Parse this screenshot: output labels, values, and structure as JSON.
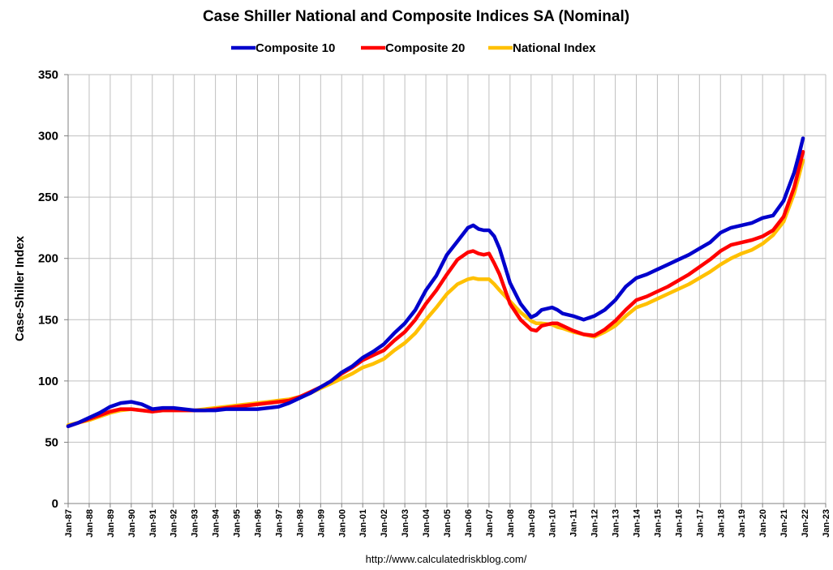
{
  "chart_data": {
    "type": "line",
    "title": "Case Shiller National and Composite Indices SA (Nominal)",
    "ylabel": "Case-Shiller Index",
    "xlabel": "",
    "source": "http://www.calculatedriskblog.com/",
    "ylim": [
      0,
      350
    ],
    "yticks": [
      "0",
      "50",
      "100",
      "150",
      "200",
      "250",
      "300",
      "350"
    ],
    "xlim": [
      1987.0,
      2023.0
    ],
    "xticks": [
      "Jan-87",
      "Jan-88",
      "Jan-89",
      "Jan-90",
      "Jan-91",
      "Jan-92",
      "Jan-93",
      "Jan-94",
      "Jan-95",
      "Jan-96",
      "Jan-97",
      "Jan-98",
      "Jan-99",
      "Jan-00",
      "Jan-01",
      "Jan-02",
      "Jan-03",
      "Jan-04",
      "Jan-05",
      "Jan-06",
      "Jan-07",
      "Jan-08",
      "Jan-09",
      "Jan-10",
      "Jan-11",
      "Jan-12",
      "Jan-13",
      "Jan-14",
      "Jan-15",
      "Jan-16",
      "Jan-17",
      "Jan-18",
      "Jan-19",
      "Jan-20",
      "Jan-21",
      "Jan-22",
      "Jan-23"
    ],
    "grid": true,
    "legend_position": "top",
    "series": [
      {
        "name": "Composite 10",
        "color": "#0000cc",
        "x": [
          1987.0,
          1987.5,
          1988.0,
          1988.5,
          1989.0,
          1989.5,
          1990.0,
          1990.5,
          1991.0,
          1991.5,
          1992.0,
          1992.5,
          1993.0,
          1993.5,
          1994.0,
          1994.5,
          1995.0,
          1995.5,
          1996.0,
          1996.5,
          1997.0,
          1997.5,
          1998.0,
          1998.5,
          1999.0,
          1999.5,
          2000.0,
          2000.5,
          2001.0,
          2001.5,
          2002.0,
          2002.5,
          2003.0,
          2003.5,
          2004.0,
          2004.5,
          2005.0,
          2005.5,
          2006.0,
          2006.25,
          2006.5,
          2006.75,
          2007.0,
          2007.25,
          2007.5,
          2008.0,
          2008.5,
          2009.0,
          2009.25,
          2009.5,
          2010.0,
          2010.25,
          2010.5,
          2011.0,
          2011.5,
          2012.0,
          2012.5,
          2013.0,
          2013.5,
          2014.0,
          2014.5,
          2015.0,
          2015.5,
          2016.0,
          2016.5,
          2017.0,
          2017.5,
          2018.0,
          2018.5,
          2019.0,
          2019.5,
          2020.0,
          2020.5,
          2021.0,
          2021.5,
          2021.75,
          2021.92
        ],
        "values": [
          63,
          66,
          70,
          74,
          79,
          82,
          83,
          81,
          77,
          78,
          78,
          77,
          76,
          76,
          76,
          77,
          77,
          77,
          77,
          78,
          79,
          82,
          86,
          90,
          95,
          100,
          107,
          112,
          119,
          124,
          130,
          139,
          147,
          158,
          174,
          186,
          203,
          214,
          225,
          227,
          224,
          223,
          223,
          218,
          208,
          180,
          163,
          152,
          154,
          158,
          160,
          158,
          155,
          153,
          150,
          153,
          158,
          166,
          177,
          184,
          187,
          191,
          195,
          199,
          203,
          208,
          213,
          221,
          225,
          227,
          229,
          233,
          235,
          247,
          270,
          286,
          298
        ]
      },
      {
        "name": "Composite 20",
        "color": "#ff0000",
        "x": [
          1987.0,
          1987.5,
          1988.0,
          1988.5,
          1989.0,
          1989.5,
          1990.0,
          1990.5,
          1991.0,
          1991.5,
          1992.0,
          1992.5,
          1993.0,
          1993.5,
          1994.0,
          1994.5,
          1995.0,
          1995.5,
          1996.0,
          1996.5,
          1997.0,
          1997.5,
          1998.0,
          1998.5,
          1999.0,
          1999.5,
          2000.0,
          2000.5,
          2001.0,
          2001.5,
          2002.0,
          2002.5,
          2003.0,
          2003.5,
          2004.0,
          2004.5,
          2005.0,
          2005.5,
          2006.0,
          2006.25,
          2006.5,
          2006.75,
          2007.0,
          2007.25,
          2007.5,
          2008.0,
          2008.5,
          2009.0,
          2009.25,
          2009.5,
          2010.0,
          2010.25,
          2010.5,
          2011.0,
          2011.5,
          2012.0,
          2012.5,
          2013.0,
          2013.5,
          2014.0,
          2014.5,
          2015.0,
          2015.5,
          2016.0,
          2016.5,
          2017.0,
          2017.5,
          2018.0,
          2018.5,
          2019.0,
          2019.5,
          2020.0,
          2020.5,
          2021.0,
          2021.5,
          2021.75,
          2021.92
        ],
        "values": [
          63,
          66,
          69,
          72,
          75,
          77,
          77,
          76,
          75,
          76,
          76,
          76,
          76,
          76,
          77,
          78,
          79,
          80,
          81,
          82,
          83,
          84,
          87,
          91,
          95,
          100,
          106,
          111,
          117,
          121,
          125,
          133,
          140,
          150,
          163,
          174,
          187,
          199,
          205,
          206,
          204,
          203,
          204,
          196,
          187,
          163,
          150,
          142,
          141,
          145,
          147,
          147,
          145,
          141,
          138,
          137,
          142,
          149,
          158,
          166,
          169,
          173,
          177,
          182,
          187,
          193,
          199,
          206,
          211,
          213,
          215,
          218,
          223,
          234,
          258,
          275,
          287
        ]
      },
      {
        "name": "National Index",
        "color": "#ffc000",
        "x": [
          1987.0,
          1987.5,
          1988.0,
          1988.5,
          1989.0,
          1989.5,
          1990.0,
          1990.5,
          1991.0,
          1991.5,
          1992.0,
          1992.5,
          1993.0,
          1993.5,
          1994.0,
          1994.5,
          1995.0,
          1995.5,
          1996.0,
          1996.5,
          1997.0,
          1997.5,
          1998.0,
          1998.5,
          1999.0,
          1999.5,
          2000.0,
          2000.5,
          2001.0,
          2001.5,
          2002.0,
          2002.5,
          2003.0,
          2003.5,
          2004.0,
          2004.5,
          2005.0,
          2005.5,
          2006.0,
          2006.25,
          2006.5,
          2006.75,
          2007.0,
          2007.25,
          2007.5,
          2008.0,
          2008.5,
          2009.0,
          2009.25,
          2009.5,
          2010.0,
          2010.25,
          2010.5,
          2011.0,
          2011.5,
          2012.0,
          2012.5,
          2013.0,
          2013.5,
          2014.0,
          2014.5,
          2015.0,
          2015.5,
          2016.0,
          2016.5,
          2017.0,
          2017.5,
          2018.0,
          2018.5,
          2019.0,
          2019.5,
          2020.0,
          2020.5,
          2021.0,
          2021.5,
          2021.75,
          2021.92
        ],
        "values": [
          64,
          66,
          68,
          71,
          74,
          76,
          77,
          76,
          75,
          76,
          76,
          76,
          76,
          77,
          78,
          79,
          80,
          81,
          82,
          83,
          84,
          85,
          87,
          90,
          94,
          98,
          102,
          106,
          111,
          114,
          118,
          125,
          131,
          139,
          150,
          160,
          171,
          179,
          183,
          184,
          183,
          183,
          183,
          179,
          174,
          165,
          156,
          149,
          147,
          147,
          146,
          144,
          143,
          140,
          138,
          136,
          140,
          145,
          153,
          160,
          163,
          167,
          171,
          175,
          179,
          184,
          189,
          195,
          200,
          204,
          207,
          212,
          219,
          230,
          253,
          269,
          280
        ]
      }
    ]
  }
}
